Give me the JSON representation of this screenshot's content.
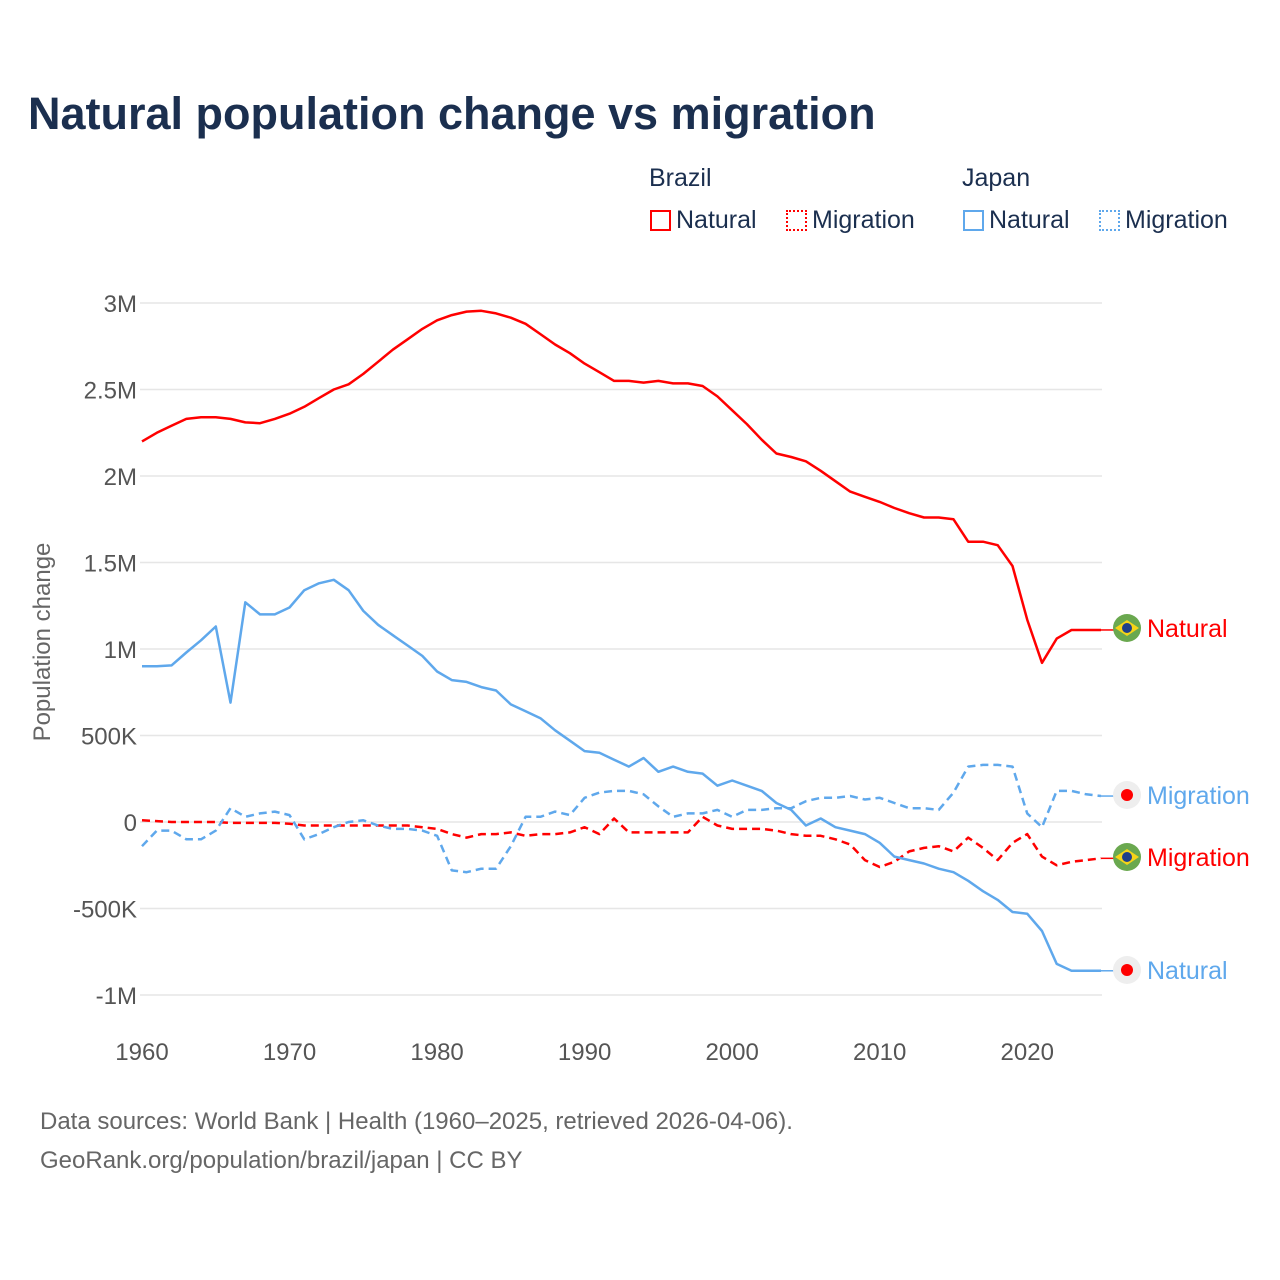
{
  "title": "Natural population change vs migration",
  "legend": {
    "groups": [
      {
        "name": "Brazil",
        "items": [
          "Natural",
          "Migration"
        ]
      },
      {
        "name": "Japan",
        "items": [
          "Natural",
          "Migration"
        ]
      }
    ]
  },
  "colors": {
    "brazil": "#ff0000",
    "japan": "#5fa8ec",
    "title": "#1b2f4f"
  },
  "footer": {
    "line1": "Data sources: World Bank | Health (1960–2025, retrieved 2026-04-06).",
    "line2": "GeoRank.org/population/brazil/japan | CC BY"
  },
  "chart_data": {
    "type": "line",
    "title": "Natural population change vs migration",
    "xlabel": "",
    "ylabel": "Population change",
    "xlim": [
      1960,
      2025
    ],
    "ylim": [
      -1000000,
      3000000
    ],
    "x_ticks": [
      "1960",
      "1970",
      "1980",
      "1990",
      "2000",
      "2010",
      "2020"
    ],
    "y_ticks": [
      {
        "v": 3000000,
        "label": "3M"
      },
      {
        "v": 2500000,
        "label": "2.5M"
      },
      {
        "v": 2000000,
        "label": "2M"
      },
      {
        "v": 1500000,
        "label": "1.5M"
      },
      {
        "v": 1000000,
        "label": "1M"
      },
      {
        "v": 500000,
        "label": "500K"
      },
      {
        "v": 0,
        "label": "0"
      },
      {
        "v": -500000,
        "label": "-500K"
      },
      {
        "v": -1000000,
        "label": "-1M"
      }
    ],
    "grid": true,
    "start_year": 1960,
    "series": [
      {
        "name": "Brazil Natural",
        "country": "brazil",
        "style": "solid",
        "end_label": "Natural",
        "values_millions": [
          2.2,
          2.25,
          2.29,
          2.33,
          2.34,
          2.34,
          2.33,
          2.31,
          2.305,
          2.33,
          2.36,
          2.4,
          2.45,
          2.5,
          2.53,
          2.59,
          2.66,
          2.73,
          2.79,
          2.85,
          2.9,
          2.93,
          2.95,
          2.955,
          2.94,
          2.915,
          2.88,
          2.82,
          2.76,
          2.71,
          2.65,
          2.6,
          2.55,
          2.55,
          2.54,
          2.55,
          2.535,
          2.535,
          2.52,
          2.46,
          2.38,
          2.3,
          2.21,
          2.13,
          2.11,
          2.085,
          2.03,
          1.97,
          1.91,
          1.88,
          1.85,
          1.815,
          1.785,
          1.76,
          1.76,
          1.75,
          1.62,
          1.62,
          1.6,
          1.48,
          1.17,
          0.92,
          1.06,
          1.11,
          1.11,
          1.11
        ]
      },
      {
        "name": "Brazil Migration",
        "country": "brazil",
        "style": "dashed",
        "end_label": "Migration",
        "values_millions": [
          0.01,
          0.005,
          0,
          0,
          0,
          0,
          -0.005,
          -0.005,
          -0.005,
          -0.005,
          -0.01,
          -0.02,
          -0.02,
          -0.02,
          -0.02,
          -0.02,
          -0.02,
          -0.02,
          -0.02,
          -0.03,
          -0.04,
          -0.07,
          -0.09,
          -0.07,
          -0.07,
          -0.06,
          -0.08,
          -0.07,
          -0.07,
          -0.06,
          -0.03,
          -0.07,
          0.02,
          -0.06,
          -0.06,
          -0.06,
          -0.06,
          -0.06,
          0.03,
          -0.02,
          -0.04,
          -0.04,
          -0.04,
          -0.05,
          -0.07,
          -0.08,
          -0.08,
          -0.1,
          -0.13,
          -0.22,
          -0.26,
          -0.23,
          -0.17,
          -0.15,
          -0.14,
          -0.17,
          -0.09,
          -0.15,
          -0.22,
          -0.12,
          -0.07,
          -0.2,
          -0.25,
          -0.23,
          -0.22,
          -0.21
        ]
      },
      {
        "name": "Japan Natural",
        "country": "japan",
        "style": "solid",
        "end_label": "Natural",
        "values_millions": [
          0.9,
          0.9,
          0.905,
          0.98,
          1.05,
          1.13,
          0.69,
          1.27,
          1.2,
          1.2,
          1.24,
          1.34,
          1.38,
          1.4,
          1.34,
          1.22,
          1.14,
          1.08,
          1.02,
          0.96,
          0.87,
          0.82,
          0.81,
          0.78,
          0.76,
          0.68,
          0.64,
          0.6,
          0.53,
          0.47,
          0.41,
          0.4,
          0.36,
          0.32,
          0.37,
          0.29,
          0.32,
          0.29,
          0.28,
          0.21,
          0.24,
          0.21,
          0.18,
          0.11,
          0.07,
          -0.02,
          0.02,
          -0.03,
          -0.05,
          -0.07,
          -0.12,
          -0.2,
          -0.22,
          -0.24,
          -0.27,
          -0.29,
          -0.34,
          -0.4,
          -0.45,
          -0.52,
          -0.53,
          -0.63,
          -0.82,
          -0.86,
          -0.86,
          -0.86
        ]
      },
      {
        "name": "Japan Migration",
        "country": "japan",
        "style": "dashed",
        "end_label": "Migration",
        "values_millions": [
          -0.14,
          -0.05,
          -0.05,
          -0.1,
          -0.1,
          -0.05,
          0.08,
          0.03,
          0.05,
          0.06,
          0.04,
          -0.1,
          -0.07,
          -0.03,
          0,
          0.01,
          -0.02,
          -0.04,
          -0.04,
          -0.05,
          -0.08,
          -0.28,
          -0.29,
          -0.27,
          -0.27,
          -0.14,
          0.03,
          0.03,
          0.06,
          0.04,
          0.14,
          0.17,
          0.18,
          0.18,
          0.16,
          0.09,
          0.03,
          0.05,
          0.05,
          0.07,
          0.03,
          0.07,
          0.07,
          0.08,
          0.08,
          0.12,
          0.14,
          0.14,
          0.15,
          0.13,
          0.14,
          0.11,
          0.08,
          0.08,
          0.07,
          0.17,
          0.32,
          0.33,
          0.33,
          0.32,
          0.05,
          -0.03,
          0.18,
          0.18,
          0.16,
          0.15
        ]
      }
    ]
  }
}
